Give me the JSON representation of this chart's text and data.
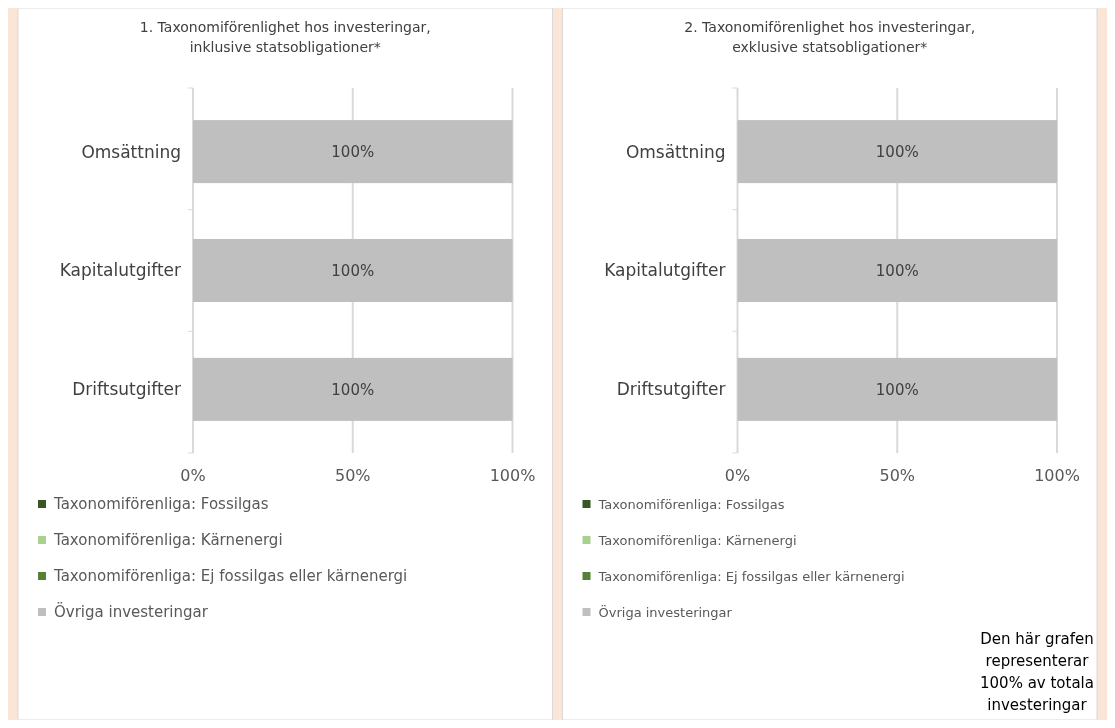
{
  "chart_data": [
    {
      "type": "bar",
      "orientation": "horizontal",
      "stacked": true,
      "title": "1. Taxonomiförenlighet hos investeringar,\ninklusive statsobligationer*",
      "categories": [
        "Omsättning",
        "Kapitalutgifter",
        "Driftsutgifter"
      ],
      "xlim": [
        0,
        100
      ],
      "xticks": [
        {
          "value": 0,
          "label": "0%"
        },
        {
          "value": 50,
          "label": "50%"
        },
        {
          "value": 100,
          "label": "100%"
        }
      ],
      "grid": "x",
      "legend": "bottom",
      "series": [
        {
          "name": "Taxonomiförenliga: Fossilgas",
          "color": "#375623",
          "values": [
            0,
            0,
            0
          ],
          "value_labels": [
            null,
            null,
            null
          ]
        },
        {
          "name": "Taxonomiförenliga: Kärnenergi",
          "color": "#a9d18e",
          "values": [
            0,
            0,
            0
          ],
          "value_labels": [
            null,
            null,
            null
          ]
        },
        {
          "name": "Taxonomiförenliga: Ej fossilgas eller kärnenergi",
          "color": "#548235",
          "values": [
            0,
            0,
            0
          ],
          "value_labels": [
            null,
            null,
            null
          ]
        },
        {
          "name": "Övriga investeringar",
          "color": "#bfbfbf",
          "values": [
            100,
            100,
            100
          ],
          "value_labels": [
            "100%",
            "100%",
            "100%"
          ]
        }
      ]
    },
    {
      "type": "bar",
      "orientation": "horizontal",
      "stacked": true,
      "title": "2. Taxonomiförenlighet hos investeringar,\nexklusive statsobligationer*",
      "categories": [
        "Omsättning",
        "Kapitalutgifter",
        "Driftsutgifter"
      ],
      "xlim": [
        0,
        100
      ],
      "xticks": [
        {
          "value": 0,
          "label": "0%"
        },
        {
          "value": 50,
          "label": "50%"
        },
        {
          "value": 100,
          "label": "100%"
        }
      ],
      "grid": "x",
      "legend": "bottom",
      "annotations": [
        "Den här grafen\nrepresenterar\n100% av totala\ninvesteringar"
      ],
      "series": [
        {
          "name": "Taxonomiförenliga: Fossilgas",
          "color": "#375623",
          "values": [
            0,
            0,
            0
          ],
          "value_labels": [
            null,
            null,
            null
          ]
        },
        {
          "name": "Taxonomiförenliga: Kärnenergi",
          "color": "#a9d18e",
          "values": [
            0,
            0,
            0
          ],
          "value_labels": [
            null,
            null,
            null
          ]
        },
        {
          "name": "Taxonomiförenliga: Ej fossilgas eller kärnenergi",
          "color": "#548235",
          "values": [
            0,
            0,
            0
          ],
          "value_labels": [
            null,
            null,
            null
          ]
        },
        {
          "name": "Övriga investeringar",
          "color": "#bfbfbf",
          "values": [
            100,
            100,
            100
          ],
          "value_labels": [
            "100%",
            "100%",
            "100%"
          ]
        }
      ]
    }
  ]
}
